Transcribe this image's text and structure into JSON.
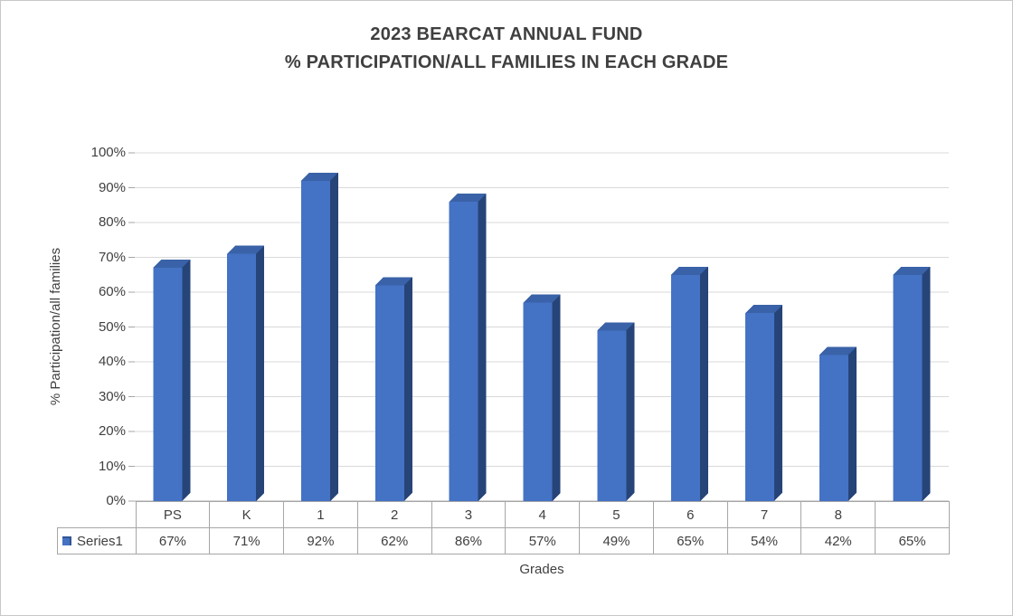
{
  "title": {
    "line1": "2023 BEARCAT ANNUAL FUND",
    "line2": "% PARTICIPATION/ALL FAMILIES IN EACH GRADE"
  },
  "chart_data": {
    "type": "bar",
    "title": "2023 BEARCAT ANNUAL FUND % PARTICIPATION/ALL FAMILIES IN EACH GRADE",
    "categories": [
      "PS",
      "K",
      "1",
      "2",
      "3",
      "4",
      "5",
      "6",
      "7",
      "8",
      ""
    ],
    "series": [
      {
        "name": "Series1",
        "values": [
          67,
          71,
          92,
          62,
          86,
          57,
          49,
          65,
          54,
          42,
          65
        ]
      }
    ],
    "value_labels": [
      "67%",
      "71%",
      "92%",
      "62%",
      "86%",
      "57%",
      "49%",
      "65%",
      "54%",
      "42%",
      "65%"
    ],
    "xlabel": "Grades",
    "ylabel": "% Participation/all families",
    "ylim": [
      0,
      100
    ],
    "ytick_step": 10,
    "ytick_labels": [
      "0%",
      "10%",
      "20%",
      "30%",
      "40%",
      "50%",
      "60%",
      "70%",
      "80%",
      "90%",
      "100%"
    ],
    "grid": true,
    "legend": {
      "position": "data-table",
      "marker_color": "#4472C4"
    },
    "bar_style": "3d-effect",
    "colors": {
      "bar_front": "#4472C4",
      "bar_side": "#264478",
      "bar_top": "#3A62A8",
      "gridline": "#d9d9d9",
      "axis": "#a6a6a6",
      "table_border": "#a6a6a6",
      "text": "#404040"
    }
  }
}
